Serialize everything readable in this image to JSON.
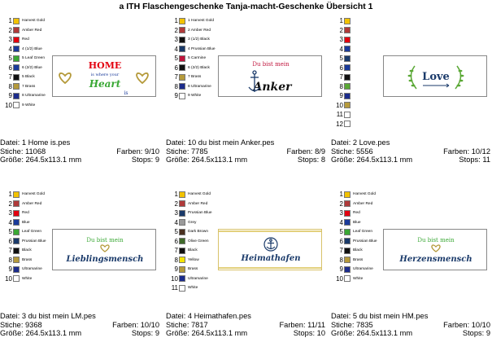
{
  "title": "a ITH Flaschengeschenke Tanja-macht-Geschenke Übersicht 1",
  "cards": [
    {
      "palette": [
        {
          "n": "1",
          "name": "Harvest Gold",
          "color": "#f2c200"
        },
        {
          "n": "2",
          "name": "Amber Red",
          "color": "#b03a3a"
        },
        {
          "n": "3",
          "name": "Red",
          "color": "#e3000f"
        },
        {
          "n": "4",
          "name": "4 (1/2) Blue",
          "color": "#1a3a9a"
        },
        {
          "n": "5",
          "name": "5 Leaf Green",
          "color": "#3aa835"
        },
        {
          "n": "6",
          "name": "6 (2/2) Blue",
          "color": "#1a3a9a"
        },
        {
          "n": "7",
          "name": "5 Black",
          "color": "#111111"
        },
        {
          "n": "8",
          "name": "7 Brass",
          "color": "#b59a3b"
        },
        {
          "n": "9",
          "name": "8 Ultramarine",
          "color": "#1c2c8c"
        },
        {
          "n": "10",
          "name": "9 White",
          "color": "#ffffff"
        }
      ],
      "design": {
        "line1": "HOME",
        "line2": "is where your",
        "line3": "Heart",
        "line4": "is"
      },
      "file": "Datei: 1 Home is.pes",
      "stiche": "Stiche: 11068",
      "farben": "Farben: 9/10",
      "groesse": "Größe: 264.5x113.1 mm",
      "stops": "Stops: 9"
    },
    {
      "palette": [
        {
          "n": "1",
          "name": "1 Harvest Gold",
          "color": "#f2c200"
        },
        {
          "n": "2",
          "name": "2 Amber Red",
          "color": "#b03a3a"
        },
        {
          "n": "3",
          "name": "3 (1/2) Black",
          "color": "#111111"
        },
        {
          "n": "4",
          "name": "4 Prussian Blue",
          "color": "#1a3a6a"
        },
        {
          "n": "5",
          "name": "5 Carmine",
          "color": "#c0143c"
        },
        {
          "n": "6",
          "name": "6 (2/2) Black",
          "color": "#111111"
        },
        {
          "n": "7",
          "name": "7 Brass",
          "color": "#b59a3b"
        },
        {
          "n": "8",
          "name": "8 Ultramarine",
          "color": "#1c2c8c"
        },
        {
          "n": "9",
          "name": "9 White",
          "color": "#ffffff"
        }
      ],
      "design": {
        "line1": "Du bist mein",
        "line2": "Anker"
      },
      "file": "Datei: 10 du bist mein Anker.pes",
      "stiche": "Stiche: 7785",
      "farben": "Farben: 8/9",
      "groesse": "Größe: 264.5x113.1 mm",
      "stops": "Stops: 8"
    },
    {
      "palette": [
        {
          "n": "1",
          "name": "",
          "color": "#f2c200"
        },
        {
          "n": "2",
          "name": "",
          "color": "#b03a3a"
        },
        {
          "n": "3",
          "name": "",
          "color": "#e3000f"
        },
        {
          "n": "4",
          "name": "",
          "color": "#1a3a9a"
        },
        {
          "n": "5",
          "name": "",
          "color": "#1a3a6a"
        },
        {
          "n": "6",
          "name": "",
          "color": "#1a3a9a"
        },
        {
          "n": "7",
          "name": "",
          "color": "#111111"
        },
        {
          "n": "8",
          "name": "",
          "color": "#5aa835"
        },
        {
          "n": "9",
          "name": "",
          "color": "#1c2c8c"
        },
        {
          "n": "10",
          "name": "",
          "color": "#b59a3b"
        },
        {
          "n": "11",
          "name": "",
          "color": "#ffffff"
        },
        {
          "n": "12",
          "name": "",
          "color": "#ffffff"
        }
      ],
      "design": {
        "line1": "Love"
      },
      "file": "Datei: 2 Love.pes",
      "stiche": "Stiche: 5556",
      "farben": "Farben: 10/12",
      "groesse": "Größe: 264.5x113.1 mm",
      "stops": "Stops: 11"
    },
    {
      "palette": [
        {
          "n": "1",
          "name": "Harvest Gold",
          "color": "#f2c200"
        },
        {
          "n": "2",
          "name": "Amber Red",
          "color": "#b03a3a"
        },
        {
          "n": "3",
          "name": "Red",
          "color": "#e3000f"
        },
        {
          "n": "4",
          "name": "Blue",
          "color": "#1a3a9a"
        },
        {
          "n": "5",
          "name": "Leaf Green",
          "color": "#3aa835"
        },
        {
          "n": "6",
          "name": "Prussian Blue",
          "color": "#1a3a6a"
        },
        {
          "n": "7",
          "name": "Black",
          "color": "#111111"
        },
        {
          "n": "8",
          "name": "Brass",
          "color": "#b59a3b"
        },
        {
          "n": "9",
          "name": "Ultramarine",
          "color": "#1c2c8c"
        },
        {
          "n": "10",
          "name": "White",
          "color": "#ffffff"
        }
      ],
      "design": {
        "line1": "Du bist mein",
        "line2": "Lieblingsmensch"
      },
      "file": "Datei: 3 du bist mein LM.pes",
      "stiche": "Stiche: 9368",
      "farben": "Farben: 10/10",
      "groesse": "Größe: 264.5x113.1 mm",
      "stops": "Stops: 9"
    },
    {
      "palette": [
        {
          "n": "1",
          "name": "Harvest Gold",
          "color": "#f2c200"
        },
        {
          "n": "2",
          "name": "Amber Red",
          "color": "#b03a3a"
        },
        {
          "n": "3",
          "name": "Prussian Blue",
          "color": "#1a3a6a"
        },
        {
          "n": "4",
          "name": "Grey",
          "color": "#9a9a9a"
        },
        {
          "n": "5",
          "name": "Dark Brown",
          "color": "#4a3020"
        },
        {
          "n": "6",
          "name": "Olive Green",
          "color": "#3f6a2a"
        },
        {
          "n": "7",
          "name": "Black",
          "color": "#111111"
        },
        {
          "n": "8",
          "name": "Yellow",
          "color": "#f5e400"
        },
        {
          "n": "9",
          "name": "Brass",
          "color": "#b59a3b"
        },
        {
          "n": "10",
          "name": "Ultramarine",
          "color": "#1c2c8c"
        },
        {
          "n": "11",
          "name": "White",
          "color": "#ffffff"
        }
      ],
      "design": {
        "line1": "Heimathafen"
      },
      "file": "Datei: 4 Heimathafen.pes",
      "stiche": "Stiche: 7817",
      "farben": "Farben: 11/11",
      "groesse": "Größe: 264.5x113.1 mm",
      "stops": "Stops: 10"
    },
    {
      "palette": [
        {
          "n": "1",
          "name": "Harvest Gold",
          "color": "#f2c200"
        },
        {
          "n": "2",
          "name": "Amber Red",
          "color": "#b03a3a"
        },
        {
          "n": "3",
          "name": "Red",
          "color": "#e3000f"
        },
        {
          "n": "4",
          "name": "Blue",
          "color": "#1a3a9a"
        },
        {
          "n": "5",
          "name": "Leaf Green",
          "color": "#3aa835"
        },
        {
          "n": "6",
          "name": "Prussian Blue",
          "color": "#1a3a6a"
        },
        {
          "n": "7",
          "name": "Black",
          "color": "#111111"
        },
        {
          "n": "8",
          "name": "Brass",
          "color": "#b59a3b"
        },
        {
          "n": "9",
          "name": "Ultramarine",
          "color": "#1c2c8c"
        },
        {
          "n": "10",
          "name": "White",
          "color": "#ffffff"
        }
      ],
      "design": {
        "line1": "Du bist mein",
        "line2": "Herzensmensch"
      },
      "file": "Datei: 5 du bist mein HM.pes",
      "stiche": "Stiche: 7835",
      "farben": "Farben: 10/10",
      "groesse": "Größe: 264.5x113.1 mm",
      "stops": "Stops: 9"
    }
  ]
}
